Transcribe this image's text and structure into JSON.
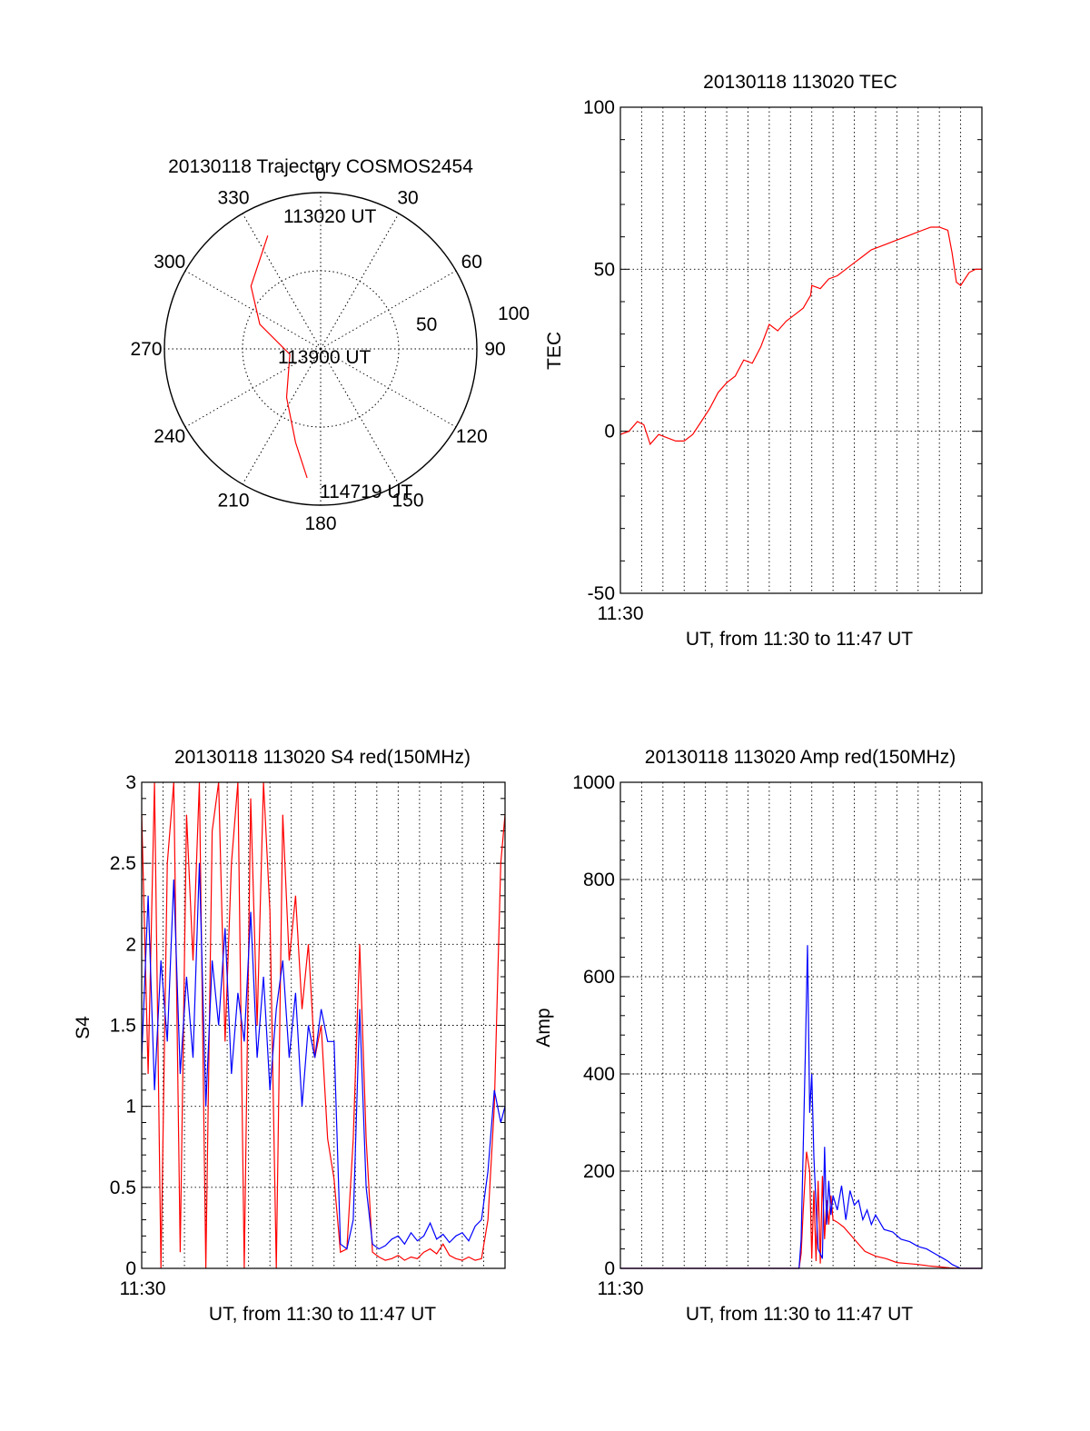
{
  "chart_data": [
    {
      "id": "polar",
      "type": "scatter",
      "title": "20130118 Trajectory COSMOS2454",
      "rlim": [
        0,
        100
      ],
      "radial_tick_labels": [
        "50",
        "100"
      ],
      "angle_labels": [
        "0",
        "30",
        "60",
        "90",
        "120",
        "150",
        "180",
        "210",
        "240",
        "270",
        "300",
        "330"
      ],
      "grid": true,
      "trajectory": {
        "color": "#ff0000",
        "points": [
          {
            "az": 335,
            "el": 20
          },
          {
            "az": 312,
            "el": 40
          },
          {
            "az": 292,
            "el": 58
          },
          {
            "az": 260,
            "el": 80
          },
          {
            "az": 215,
            "el": 62
          },
          {
            "az": 195,
            "el": 38
          },
          {
            "az": 186,
            "el": 17
          }
        ]
      },
      "annotations": [
        "113020 UT",
        "113900 UT",
        "114719 UT"
      ]
    },
    {
      "id": "tec",
      "type": "line",
      "title": "20130118 113020 TEC",
      "xlabel": "UT, from 11:30 to 11:47 UT",
      "ylabel": "TEC",
      "xlim": [
        0,
        17
      ],
      "ylim": [
        -50,
        100
      ],
      "y_ticks": [
        "100",
        "50",
        "0",
        "-50"
      ],
      "x_tick_label": "11:30",
      "grid": true,
      "series": [
        {
          "color": "#ff0000",
          "x": [
            0.0,
            0.4,
            0.8,
            1.1,
            1.4,
            1.8,
            2.2,
            2.6,
            3.0,
            3.4,
            3.8,
            4.2,
            4.6,
            5.0,
            5.4,
            5.8,
            6.2,
            6.6,
            7.0,
            7.4,
            7.8,
            8.2,
            8.6,
            8.95,
            9.0,
            9.4,
            9.8,
            10.2,
            10.6,
            11.0,
            11.4,
            11.8,
            12.2,
            12.6,
            13.0,
            13.4,
            13.8,
            14.2,
            14.6,
            15.0,
            15.4,
            15.6,
            15.8,
            16.0,
            16.2,
            16.4,
            16.7,
            17.0
          ],
          "y": [
            -1,
            0,
            3,
            2,
            -4,
            -1,
            -2,
            -3,
            -3,
            -1,
            3,
            7,
            12,
            15,
            17,
            22,
            21,
            26,
            33,
            31,
            34,
            36,
            38,
            42,
            45,
            44,
            47,
            48,
            50,
            52,
            54,
            56,
            57,
            58,
            59,
            60,
            61,
            62,
            63,
            63,
            62,
            55,
            46,
            45,
            47,
            49,
            50,
            50
          ]
        }
      ]
    },
    {
      "id": "s4",
      "type": "line",
      "title": "20130118 113020 S4 red(150MHz)",
      "xlabel": "UT, from 11:30 to 11:47 UT",
      "ylabel": "S4",
      "xlim": [
        0,
        17
      ],
      "ylim": [
        0,
        3
      ],
      "y_ticks": [
        "3",
        "2.5",
        "2",
        "1.5",
        "1",
        "0.5",
        "0"
      ],
      "x_tick_label": "11:30",
      "grid": true,
      "series": [
        {
          "color": "#ff0000",
          "x": [
            0.0,
            0.3,
            0.6,
            0.9,
            1.2,
            1.5,
            1.8,
            2.1,
            2.4,
            2.7,
            3.0,
            3.3,
            3.6,
            3.9,
            4.2,
            4.5,
            4.8,
            5.1,
            5.4,
            5.7,
            6.0,
            6.3,
            6.6,
            6.9,
            7.2,
            7.5,
            7.8,
            8.1,
            8.4,
            8.7,
            9.0,
            9.3,
            9.6,
            9.9,
            10.2,
            10.5,
            10.8,
            11.1,
            11.4,
            11.7,
            12.0,
            12.3,
            12.6,
            12.9,
            13.2,
            13.5,
            13.8,
            14.1,
            14.4,
            14.7,
            15.0,
            15.3,
            15.6,
            15.9,
            16.2,
            16.5,
            16.8,
            17.0
          ],
          "y": [
            2.8,
            1.2,
            3.0,
            0.0,
            2.5,
            3.0,
            0.1,
            2.8,
            1.9,
            3.0,
            0.0,
            2.7,
            3.0,
            1.4,
            2.5,
            3.0,
            0.0,
            2.9,
            1.5,
            3.0,
            2.2,
            0.0,
            2.8,
            1.9,
            2.3,
            1.6,
            2.0,
            1.3,
            1.5,
            0.8,
            0.55,
            0.1,
            0.12,
            0.8,
            2.0,
            0.8,
            0.1,
            0.07,
            0.05,
            0.06,
            0.08,
            0.05,
            0.07,
            0.06,
            0.1,
            0.12,
            0.09,
            0.15,
            0.08,
            0.06,
            0.05,
            0.07,
            0.05,
            0.06,
            0.3,
            1.0,
            2.5,
            2.8
          ]
        },
        {
          "color": "#0000ff",
          "x": [
            0.0,
            0.3,
            0.6,
            0.9,
            1.2,
            1.5,
            1.8,
            2.1,
            2.4,
            2.7,
            3.0,
            3.3,
            3.6,
            3.9,
            4.2,
            4.5,
            4.8,
            5.1,
            5.4,
            5.7,
            6.0,
            6.3,
            6.6,
            6.9,
            7.2,
            7.5,
            7.8,
            8.1,
            8.4,
            8.7,
            9.0,
            9.3,
            9.6,
            9.9,
            10.2,
            10.5,
            10.8,
            11.1,
            11.4,
            11.7,
            12.0,
            12.3,
            12.6,
            12.9,
            13.2,
            13.5,
            13.8,
            14.1,
            14.4,
            14.7,
            15.0,
            15.3,
            15.6,
            15.9,
            16.2,
            16.5,
            16.8,
            17.0
          ],
          "y": [
            1.3,
            2.3,
            1.1,
            1.9,
            1.4,
            2.4,
            1.2,
            1.8,
            1.3,
            2.5,
            1.0,
            1.9,
            1.5,
            2.1,
            1.2,
            1.7,
            1.4,
            2.2,
            1.3,
            1.8,
            1.1,
            1.6,
            1.9,
            1.3,
            1.7,
            1.0,
            1.5,
            1.3,
            1.6,
            1.4,
            1.4,
            0.15,
            0.12,
            0.3,
            1.6,
            0.5,
            0.15,
            0.12,
            0.14,
            0.18,
            0.2,
            0.15,
            0.22,
            0.17,
            0.2,
            0.28,
            0.18,
            0.21,
            0.16,
            0.2,
            0.22,
            0.17,
            0.26,
            0.3,
            0.6,
            1.1,
            0.9,
            1.0
          ]
        }
      ]
    },
    {
      "id": "amp",
      "type": "line",
      "title": "20130118 113020 Amp red(150MHz)",
      "xlabel": "UT, from 11:30 to 11:47 UT",
      "ylabel": "Amp",
      "xlim": [
        0,
        17
      ],
      "ylim": [
        0,
        1000
      ],
      "y_ticks": [
        "1000",
        "800",
        "600",
        "400",
        "200",
        "0"
      ],
      "x_tick_label": "11:30",
      "grid": true,
      "series": [
        {
          "color": "#ff0000",
          "x": [
            0.0,
            2.0,
            4.0,
            6.0,
            8.0,
            8.4,
            8.5,
            8.6,
            8.75,
            8.9,
            9.0,
            9.1,
            9.2,
            9.3,
            9.4,
            9.5,
            9.6,
            9.7,
            9.8,
            9.9,
            10.0,
            10.2,
            10.5,
            11.0,
            11.5,
            12.0,
            12.5,
            13.0,
            13.5,
            14.0,
            14.5,
            15.0,
            15.5,
            16.0,
            16.5,
            17.0
          ],
          "y": [
            0,
            0,
            0,
            0,
            0,
            0,
            30,
            120,
            240,
            200,
            20,
            160,
            15,
            180,
            10,
            190,
            60,
            140,
            90,
            150,
            100,
            95,
            85,
            60,
            35,
            25,
            20,
            12,
            10,
            8,
            5,
            3,
            1,
            0,
            0,
            0
          ]
        },
        {
          "color": "#0000ff",
          "x": [
            0.0,
            2.0,
            4.0,
            6.0,
            8.0,
            8.4,
            8.5,
            8.6,
            8.7,
            8.8,
            8.9,
            9.0,
            9.1,
            9.2,
            9.3,
            9.4,
            9.5,
            9.6,
            9.7,
            9.8,
            9.9,
            10.0,
            10.2,
            10.4,
            10.6,
            10.8,
            11.0,
            11.2,
            11.4,
            11.6,
            11.8,
            12.0,
            12.4,
            12.8,
            13.2,
            13.6,
            14.0,
            14.4,
            14.8,
            15.2,
            15.4,
            15.6,
            16.0,
            17.0
          ],
          "y": [
            0,
            0,
            0,
            0,
            0,
            0,
            60,
            250,
            450,
            665,
            320,
            400,
            230,
            130,
            40,
            30,
            20,
            250,
            90,
            180,
            110,
            150,
            120,
            170,
            100,
            160,
            130,
            140,
            100,
            120,
            90,
            110,
            80,
            75,
            60,
            55,
            45,
            40,
            30,
            20,
            15,
            8,
            0,
            0
          ]
        }
      ]
    }
  ]
}
